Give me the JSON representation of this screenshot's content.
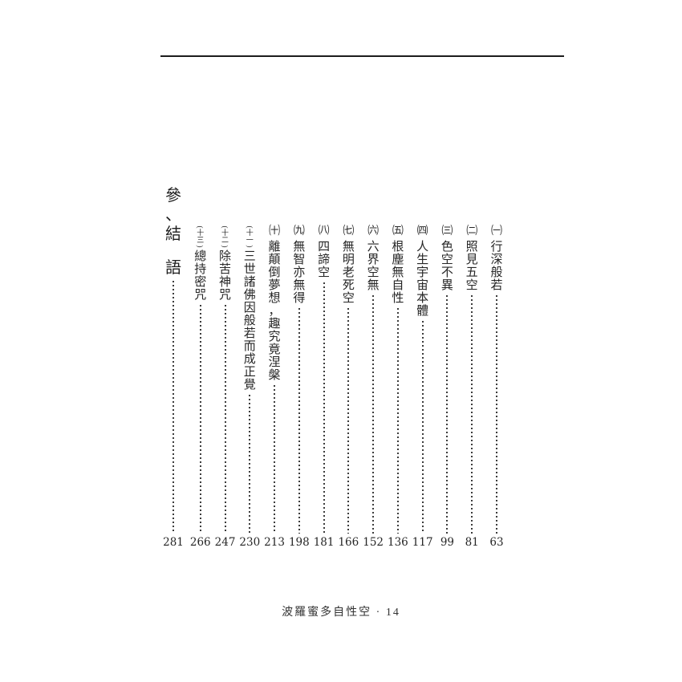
{
  "page": {
    "bg_color": "#ffffff",
    "rule_color": "#1c1c1c",
    "text_color": "#262626"
  },
  "toc": {
    "heading": {
      "title": "參、結語",
      "page": "281"
    },
    "entries": [
      {
        "marker": "㈠",
        "title": "行深般若",
        "page": "63"
      },
      {
        "marker": "㈡",
        "title": "照見五空",
        "page": "81"
      },
      {
        "marker": "㈢",
        "title": "色空不異",
        "page": "99"
      },
      {
        "marker": "㈣",
        "title": "人生宇宙本體",
        "page": "117"
      },
      {
        "marker": "㈤",
        "title": "根塵無自性",
        "page": "136"
      },
      {
        "marker": "㈥",
        "title": "六界空無",
        "page": "152"
      },
      {
        "marker": "㈦",
        "title": "無明老死空",
        "page": "166"
      },
      {
        "marker": "㈧",
        "title": "四諦空",
        "page": "181"
      },
      {
        "marker": "㈨",
        "title": "無智亦無得",
        "page": "198"
      },
      {
        "marker": "㈩",
        "title": "離顛倒夢想，趣究竟涅槃",
        "page": "213"
      },
      {
        "marker": "(十一)",
        "title": "三世諸佛因般若而成正覺",
        "page": "230"
      },
      {
        "marker": "(十二)",
        "title": "除苦神咒",
        "page": "247"
      },
      {
        "marker": "(十三)",
        "title": "總持密咒",
        "page": "266"
      }
    ]
  },
  "footer": {
    "text": "波羅蜜多自性空 · 14"
  }
}
